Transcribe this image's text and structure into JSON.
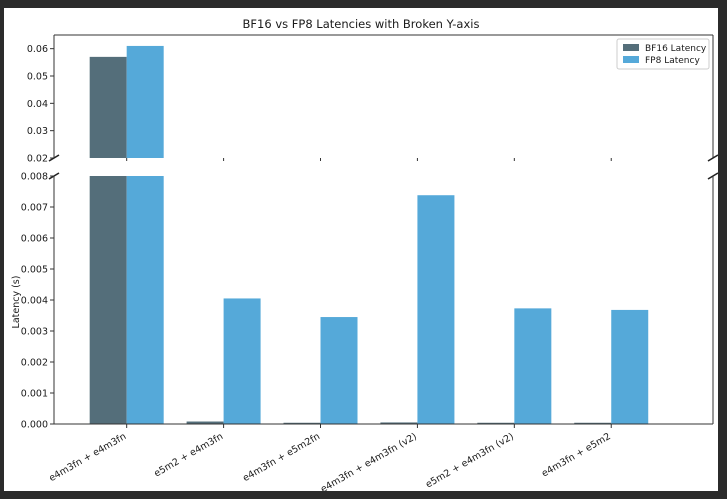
{
  "chart_data": {
    "type": "bar",
    "title": "BF16 vs FP8 Latencies with Broken Y-axis",
    "ylabel": "Latency (s)",
    "xlabel": "",
    "categories": [
      "e4m3fn + e4m3fn",
      "e5m2 + e4m3fn",
      "e4m3fn + e5m2fn",
      "e4m3fn + e4m3fn (v2)",
      "e5m2 + e4m3fn (v2)",
      "e4m3fn + e5m2"
    ],
    "series": [
      {
        "name": "BF16 Latency",
        "color": "#546e7a",
        "values": [
          0.057,
          8e-05,
          4e-05,
          5e-05,
          4e-05,
          4e-05
        ]
      },
      {
        "name": "FP8 Latency",
        "color": "#55a9d9",
        "values": [
          0.061,
          0.00405,
          0.00345,
          0.00738,
          0.00373,
          0.00368
        ]
      }
    ],
    "broken_axis": {
      "top_ylim": [
        0.02,
        0.065
      ],
      "top_ticks": [
        "0.02",
        "0.03",
        "0.04",
        "0.05",
        "0.06"
      ],
      "bottom_ylim": [
        0,
        0.008
      ],
      "bottom_ticks": [
        "0.000",
        "0.001",
        "0.002",
        "0.003",
        "0.004",
        "0.005",
        "0.006",
        "0.007",
        "0.008"
      ]
    },
    "legend_position": "top-right",
    "grid": false
  }
}
